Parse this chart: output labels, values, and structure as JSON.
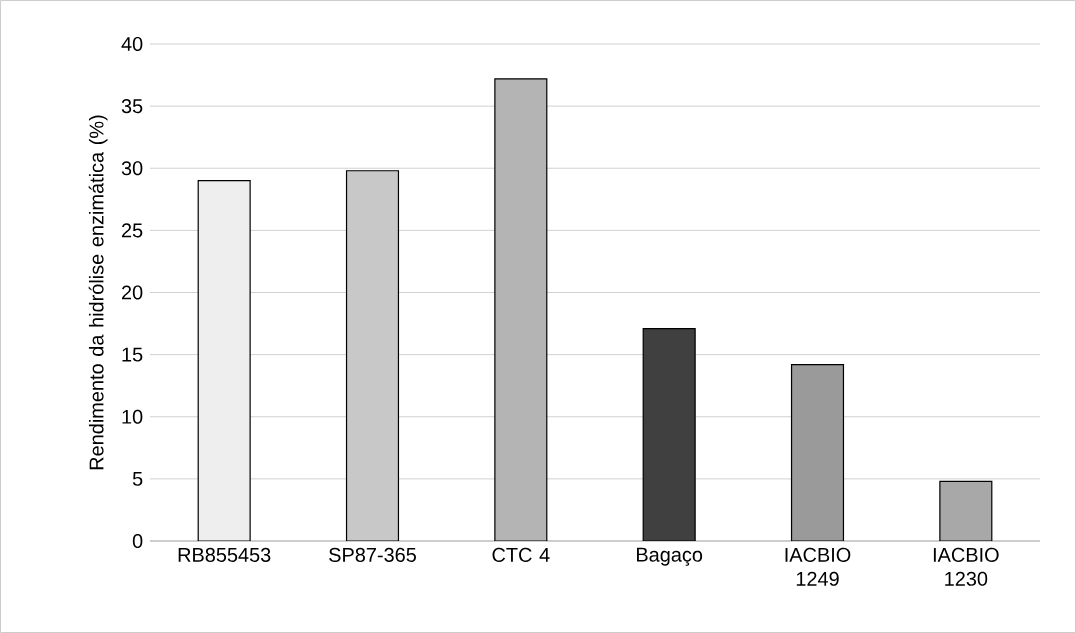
{
  "chart_data": {
    "type": "bar",
    "ylabel": "Rendimento da hidrólise enzimática (%)",
    "categories": [
      "RB855453",
      "SP87-365",
      "CTC 4",
      "Bagaço",
      "IACBIO 1249",
      "IACBIO 1230"
    ],
    "values": [
      29.0,
      29.8,
      37.2,
      17.1,
      14.2,
      4.8
    ],
    "colors": [
      "#eeeeee",
      "#c8c8c8",
      "#b4b4b4",
      "#404040",
      "#9a9a9a",
      "#a8a8a8"
    ],
    "ylim": [
      0,
      40
    ],
    "yticks": [
      0,
      5,
      10,
      15,
      20,
      25,
      30,
      35,
      40
    ],
    "grid": "y"
  }
}
